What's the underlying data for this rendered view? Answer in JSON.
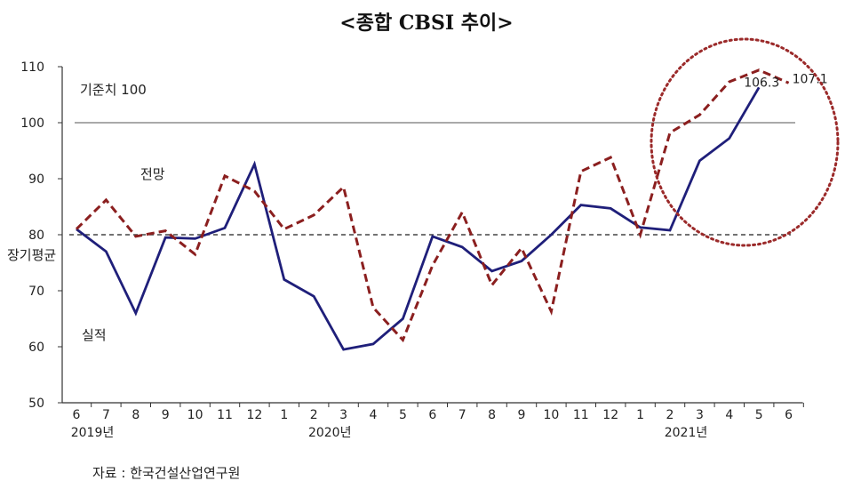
{
  "chart_data": {
    "type": "line",
    "title": "<종합 CBSI 추이>",
    "source": "자료 : 한국건설산업연구원",
    "y_ticks": [
      "50",
      "60",
      "70",
      "80",
      "90",
      "100",
      "110"
    ],
    "ylim": [
      50,
      110
    ],
    "x_ticks": [
      "6",
      "7",
      "8",
      "9",
      "10",
      "11",
      "12",
      "1",
      "2",
      "3",
      "4",
      "5",
      "6",
      "7",
      "8",
      "9",
      "10",
      "11",
      "12",
      "1",
      "2",
      "3",
      "4",
      "5",
      "6"
    ],
    "year_labels": [
      {
        "text": "2019년",
        "month_index": 0
      },
      {
        "text": "2020년",
        "month_index": 8
      },
      {
        "text": "2021년",
        "month_index": 20
      }
    ],
    "reference_label": "기준치 100",
    "reference_value": 100,
    "longterm_label": "장기평균",
    "longterm_value": 80,
    "series": [
      {
        "name": "실적",
        "color": "#1f1f7a",
        "style": "solid",
        "values": [
          81,
          77,
          66,
          79.5,
          79.3,
          81.2,
          92.6,
          72,
          69,
          59.5,
          60.5,
          65,
          79.7,
          77.8,
          73.5,
          75.3,
          80,
          85.3,
          84.7,
          81.3,
          80.8,
          93.2,
          97.2,
          106.3
        ]
      },
      {
        "name": "전망",
        "color": "#8b1f1f",
        "style": "dashed",
        "values": [
          81,
          86.2,
          79.7,
          80.7,
          76.5,
          90.5,
          87.8,
          81,
          83.5,
          88.5,
          67,
          61.2,
          74.5,
          84,
          71,
          77.6,
          66.3,
          91.3,
          93.8,
          80,
          98.2,
          101.4,
          107.3,
          109.4,
          107.1
        ]
      }
    ],
    "data_labels": [
      {
        "text": "106.3",
        "series": "실적",
        "month_index": 23
      },
      {
        "text": "107.1",
        "series": "전망",
        "month_index": 24
      }
    ]
  }
}
